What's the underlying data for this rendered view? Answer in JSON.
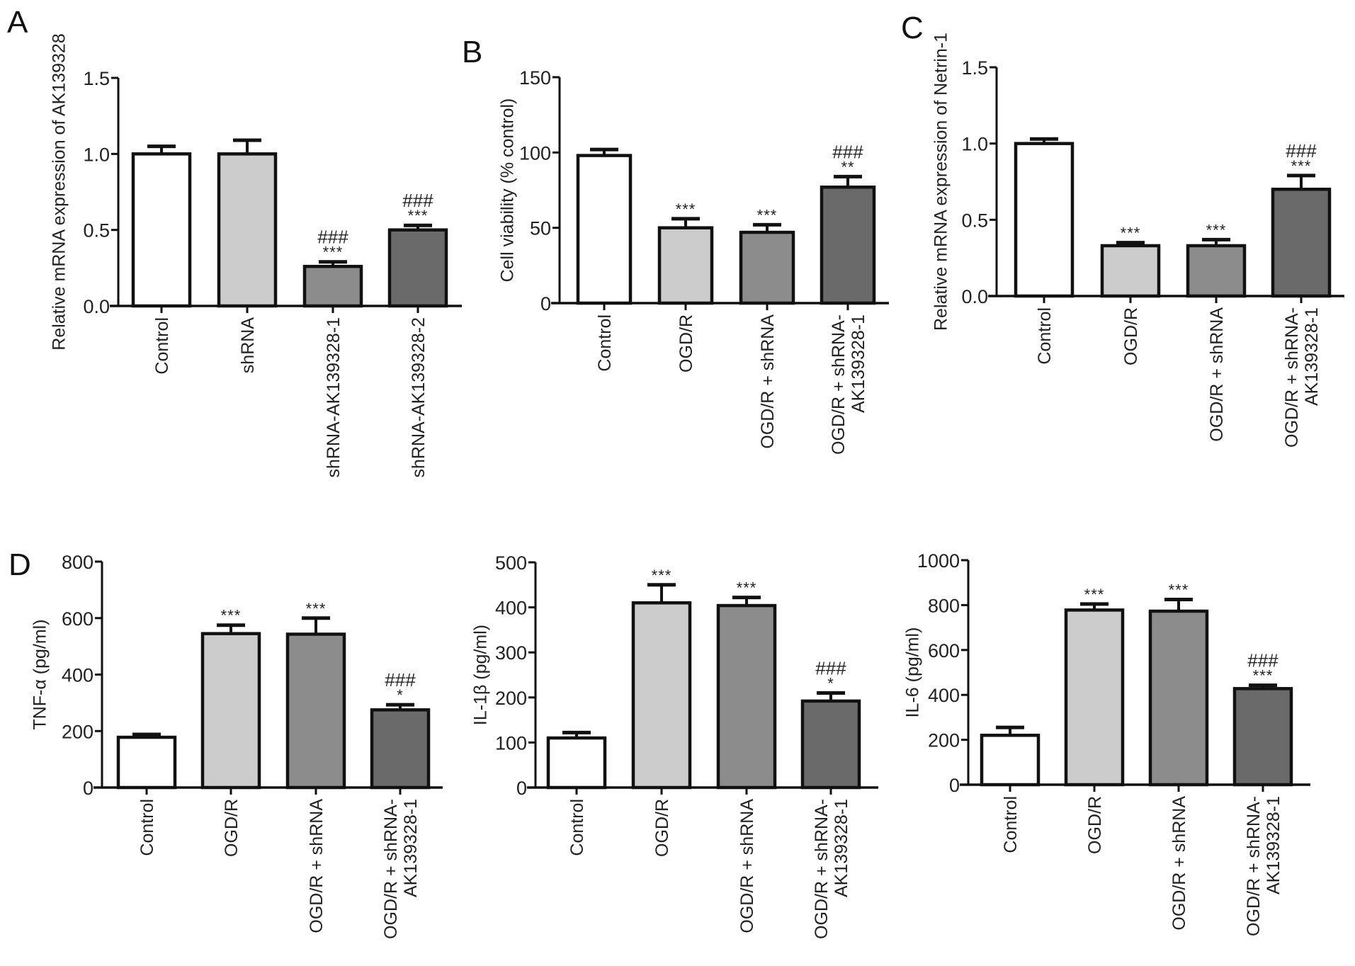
{
  "figure": {
    "colors": {
      "axis": "#111111",
      "bar_fills": [
        "#ffffff",
        "#cccccc",
        "#8c8c8c",
        "#6a6a6a"
      ]
    }
  },
  "chart_data": [
    {
      "id": "A",
      "type": "bar",
      "panel_letter": "A",
      "title": "",
      "xlabel": "",
      "ylabel": "Relative mRNA expression of AK139328",
      "ylim": [
        0,
        1.5
      ],
      "yticks": [
        "0.0",
        "0.5",
        "1.0",
        "1.5"
      ],
      "ytick_values": [
        0,
        0.5,
        1.0,
        1.5
      ],
      "categories": [
        [
          "Control"
        ],
        [
          "shRNA"
        ],
        [
          "shRNA-AK139328-1"
        ],
        [
          "shRNA-AK139328-2"
        ]
      ],
      "values": [
        1.0,
        1.0,
        0.26,
        0.5
      ],
      "errors": [
        0.05,
        0.09,
        0.03,
        0.03
      ],
      "significance": [
        {
          "star": "",
          "hash": ""
        },
        {
          "star": "",
          "hash": ""
        },
        {
          "star": "***",
          "hash": "###"
        },
        {
          "star": "***",
          "hash": "###"
        }
      ]
    },
    {
      "id": "B",
      "type": "bar",
      "panel_letter": "B",
      "title": "",
      "xlabel": "",
      "ylabel": "Cell viability (% control)",
      "ylim": [
        0,
        150
      ],
      "yticks": [
        "0",
        "50",
        "100",
        "150"
      ],
      "ytick_values": [
        0,
        50,
        100,
        150
      ],
      "categories": [
        [
          "Control"
        ],
        [
          "OGD/R"
        ],
        [
          "OGD/R + shRNA"
        ],
        [
          "OGD/R + shRNA-",
          "AK139328-1"
        ]
      ],
      "values": [
        98,
        50,
        47,
        77
      ],
      "errors": [
        4,
        6,
        5,
        7
      ],
      "significance": [
        {
          "star": "",
          "hash": ""
        },
        {
          "star": "***",
          "hash": ""
        },
        {
          "star": "***",
          "hash": ""
        },
        {
          "star": "**",
          "hash": "###"
        }
      ]
    },
    {
      "id": "C",
      "type": "bar",
      "panel_letter": "C",
      "title": "",
      "xlabel": "",
      "ylabel": "Relative mRNA expression of Netrin-1",
      "ylim": [
        0,
        1.5
      ],
      "yticks": [
        "0.0",
        "0.5",
        "1.0",
        "1.5"
      ],
      "ytick_values": [
        0,
        0.5,
        1.0,
        1.5
      ],
      "categories": [
        [
          "Control"
        ],
        [
          "OGD/R"
        ],
        [
          "OGD/R + shRNA"
        ],
        [
          "OGD/R + shRNA-",
          "AK139328-1"
        ]
      ],
      "values": [
        1.0,
        0.33,
        0.33,
        0.7
      ],
      "errors": [
        0.03,
        0.02,
        0.04,
        0.09
      ],
      "significance": [
        {
          "star": "",
          "hash": ""
        },
        {
          "star": "***",
          "hash": ""
        },
        {
          "star": "***",
          "hash": ""
        },
        {
          "star": "***",
          "hash": "###"
        }
      ]
    },
    {
      "id": "D1",
      "type": "bar",
      "panel_letter": "D",
      "title": "",
      "xlabel": "",
      "ylabel": "TNF-α (pg/ml)",
      "ylim": [
        0,
        800
      ],
      "yticks": [
        "0",
        "200",
        "400",
        "600",
        "800"
      ],
      "ytick_values": [
        0,
        200,
        400,
        600,
        800
      ],
      "categories": [
        [
          "Control"
        ],
        [
          "OGD/R"
        ],
        [
          "OGD/R + shRNA"
        ],
        [
          "OGD/R + shRNA-",
          "AK139328-1"
        ]
      ],
      "values": [
        178,
        545,
        543,
        275
      ],
      "errors": [
        10,
        30,
        57,
        18
      ],
      "significance": [
        {
          "star": "",
          "hash": ""
        },
        {
          "star": "***",
          "hash": ""
        },
        {
          "star": "***",
          "hash": ""
        },
        {
          "star": "*",
          "hash": "###"
        }
      ]
    },
    {
      "id": "D2",
      "type": "bar",
      "panel_letter": "",
      "title": "",
      "xlabel": "",
      "ylabel": "IL-1β (pg/ml)",
      "ylim": [
        0,
        500
      ],
      "yticks": [
        "0",
        "100",
        "200",
        "300",
        "400",
        "500"
      ],
      "ytick_values": [
        0,
        100,
        200,
        300,
        400,
        500
      ],
      "categories": [
        [
          "Control"
        ],
        [
          "OGD/R"
        ],
        [
          "OGD/R + shRNA"
        ],
        [
          "OGD/R + shRNA-",
          "AK139328-1"
        ]
      ],
      "values": [
        110,
        410,
        404,
        192
      ],
      "errors": [
        12,
        40,
        18,
        18
      ],
      "significance": [
        {
          "star": "",
          "hash": ""
        },
        {
          "star": "***",
          "hash": ""
        },
        {
          "star": "***",
          "hash": ""
        },
        {
          "star": "*",
          "hash": "###"
        }
      ]
    },
    {
      "id": "D3",
      "type": "bar",
      "panel_letter": "",
      "title": "",
      "xlabel": "",
      "ylabel": "IL-6 (pg/ml)",
      "ylim": [
        0,
        1000
      ],
      "yticks": [
        "0",
        "200",
        "400",
        "600",
        "800",
        "1000"
      ],
      "ytick_values": [
        0,
        200,
        400,
        600,
        800,
        1000
      ],
      "categories": [
        [
          "Control"
        ],
        [
          "OGD/R"
        ],
        [
          "OGD/R + shRNA"
        ],
        [
          "OGD/R + shRNA-",
          "AK139328-1"
        ]
      ],
      "values": [
        220,
        778,
        773,
        428
      ],
      "errors": [
        35,
        27,
        52,
        15
      ],
      "significance": [
        {
          "star": "",
          "hash": ""
        },
        {
          "star": "***",
          "hash": ""
        },
        {
          "star": "***",
          "hash": ""
        },
        {
          "star": "***",
          "hash": "###"
        }
      ]
    }
  ]
}
